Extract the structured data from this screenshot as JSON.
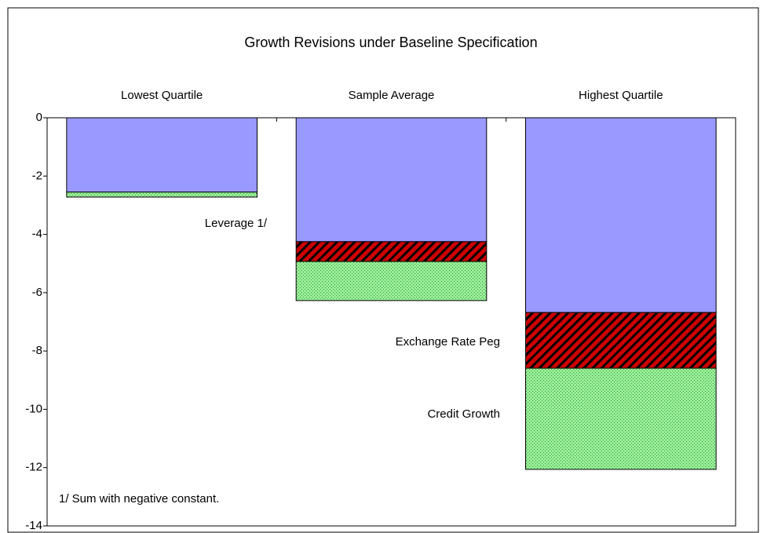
{
  "chart_data": {
    "type": "stacked_bar",
    "title": "Growth Revisions under Baseline Specification",
    "categories": [
      "Lowest Quartile",
      "Sample Average",
      "Highest Quartile"
    ],
    "series": [
      {
        "name": "Leverage 1/",
        "color": "#9999ff",
        "values": [
          -2.55,
          -4.25,
          -6.68
        ]
      },
      {
        "name": "Exchange Rate Peg",
        "color": "#cc0000",
        "values": [
          0,
          -0.68,
          -1.91
        ]
      },
      {
        "name": "Credit Growth",
        "color": "#99ee99",
        "values": [
          -0.17,
          -1.34,
          -3.47
        ]
      }
    ],
    "ylim": [
      -14,
      0
    ],
    "yticks": [
      0,
      -2,
      -4,
      -6,
      -8,
      -10,
      -12,
      -14
    ],
    "annotations": [
      "1/ Sum with negative constant."
    ]
  }
}
